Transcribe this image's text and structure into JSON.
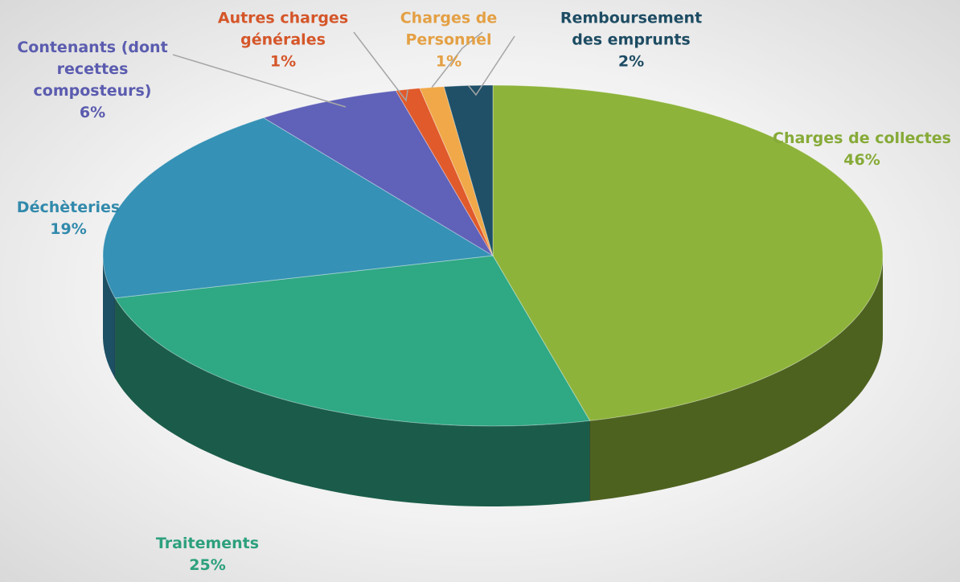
{
  "chart_data": {
    "type": "pie",
    "categories": [
      "Charges de collectes",
      "Traitements",
      "Déchèteries",
      "Contenants (dont recettes composteurs)",
      "Autres charges générales",
      "Charges de Personnel",
      "Remboursement des emprunts"
    ],
    "values": [
      46,
      25,
      19,
      6,
      1,
      1,
      2
    ],
    "value_labels": [
      "46%",
      "25%",
      "19%",
      "6%",
      "1%",
      "1%",
      "2%"
    ],
    "colors": [
      "#8db33a",
      "#2fa884",
      "#3591b5",
      "#6061b8",
      "#e05a2b",
      "#f0a848",
      "#1f5068"
    ]
  }
}
